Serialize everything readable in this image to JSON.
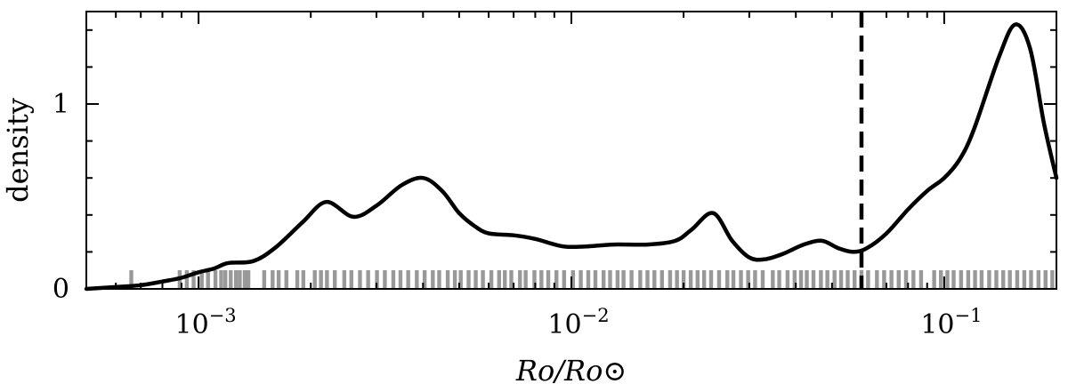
{
  "chart_data": {
    "type": "line",
    "xlabel": "Ro/Ro⊙",
    "ylabel": "density",
    "xscale": "log",
    "xlim": [
      0.0005,
      0.2
    ],
    "ylim": [
      0,
      1.5
    ],
    "grid": false,
    "x_ticks": [
      {
        "value": 0.001,
        "base": "10",
        "exp": "−3"
      },
      {
        "value": 0.01,
        "base": "10",
        "exp": "−2"
      },
      {
        "value": 0.1,
        "base": "10",
        "exp": "−1"
      }
    ],
    "y_ticks": [
      {
        "value": 0,
        "label": "0"
      },
      {
        "value": 1,
        "label": "1"
      }
    ],
    "threshold_x": 0.06,
    "series": [
      {
        "color": "#000000",
        "x": [
          0.0005,
          0.0006,
          0.0007,
          0.0008,
          0.0009,
          0.001,
          0.0011,
          0.0012,
          0.0014,
          0.0016,
          0.0019,
          0.0022,
          0.0026,
          0.003,
          0.0035,
          0.004,
          0.0045,
          0.005,
          0.0055,
          0.006,
          0.007,
          0.008,
          0.0095,
          0.011,
          0.013,
          0.016,
          0.019,
          0.021,
          0.024,
          0.027,
          0.03,
          0.033,
          0.037,
          0.042,
          0.047,
          0.052,
          0.057,
          0.062,
          0.07,
          0.08,
          0.09,
          0.1,
          0.11,
          0.12,
          0.14,
          0.155,
          0.17,
          0.185,
          0.2
        ],
        "y": [
          0,
          0.01,
          0.02,
          0.04,
          0.06,
          0.09,
          0.11,
          0.14,
          0.15,
          0.22,
          0.36,
          0.47,
          0.39,
          0.45,
          0.56,
          0.6,
          0.53,
          0.41,
          0.34,
          0.3,
          0.29,
          0.27,
          0.23,
          0.23,
          0.24,
          0.24,
          0.26,
          0.32,
          0.41,
          0.26,
          0.17,
          0.16,
          0.19,
          0.24,
          0.26,
          0.22,
          0.2,
          0.22,
          0.3,
          0.43,
          0.53,
          0.6,
          0.7,
          0.86,
          1.25,
          1.43,
          1.3,
          0.9,
          0.6
        ]
      }
    ],
    "rug": {
      "color": "#999999",
      "x": [
        0.00066,
        0.00089,
        0.00093,
        0.00097,
        0.00102,
        0.00106,
        0.00111,
        0.00115,
        0.00118,
        0.00122,
        0.00126,
        0.00129,
        0.00133,
        0.00136,
        0.0015,
        0.00158,
        0.00164,
        0.00172,
        0.00184,
        0.00191,
        0.00205,
        0.00213,
        0.00221,
        0.00232,
        0.00246,
        0.00257,
        0.00271,
        0.00285,
        0.00301,
        0.00316,
        0.00333,
        0.00348,
        0.00365,
        0.00385,
        0.00404,
        0.00425,
        0.00442,
        0.00466,
        0.00487,
        0.00505,
        0.0053,
        0.00554,
        0.00579,
        0.0061,
        0.0064,
        0.00663,
        0.0069,
        0.00728,
        0.00754,
        0.00796,
        0.00831,
        0.00867,
        0.00912,
        0.00956,
        0.0101,
        0.0106,
        0.0111,
        0.0116,
        0.0122,
        0.0127,
        0.0133,
        0.0138,
        0.0145,
        0.0153,
        0.016,
        0.0167,
        0.0175,
        0.0184,
        0.0192,
        0.02,
        0.0209,
        0.0218,
        0.0227,
        0.0237,
        0.0249,
        0.0262,
        0.0272,
        0.0285,
        0.0298,
        0.0311,
        0.0326,
        0.0347,
        0.0361,
        0.038,
        0.0397,
        0.0413,
        0.0428,
        0.0446,
        0.0467,
        0.0486,
        0.0508,
        0.0529,
        0.0551,
        0.0575,
        0.06,
        0.0625,
        0.066,
        0.069,
        0.0722,
        0.0755,
        0.079,
        0.0827,
        0.0867,
        0.094,
        0.098,
        0.102,
        0.106,
        0.111,
        0.116,
        0.121,
        0.126,
        0.132,
        0.138,
        0.144,
        0.15,
        0.157,
        0.164,
        0.171,
        0.179,
        0.187,
        0.195
      ]
    }
  }
}
